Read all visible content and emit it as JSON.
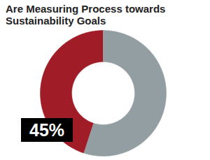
{
  "chart_data": {
    "type": "donut",
    "title": "Are Measuring Process towards Sustainability Goals",
    "values": [
      45,
      55
    ],
    "value_labels": [
      "45%",
      null
    ],
    "colors": [
      "#a01c26",
      "#939ea3"
    ],
    "data_labels": true
  }
}
